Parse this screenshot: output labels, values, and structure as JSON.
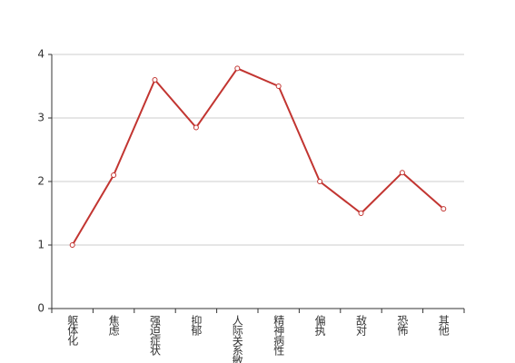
{
  "chart_data": {
    "type": "line",
    "categories": [
      "躯体化",
      "焦虑",
      "强迫症状",
      "抑郁",
      "人际关系敏感",
      "精神病性",
      "偏执",
      "敌对",
      "恐怖",
      "其他"
    ],
    "series": [
      {
        "color": "#c23531",
        "values": [
          1.0,
          2.1,
          3.6,
          2.85,
          3.78,
          3.5,
          2.0,
          1.5,
          2.14,
          1.57
        ]
      }
    ],
    "ylim": [
      0,
      4
    ],
    "yticks": [
      0,
      1,
      2,
      3,
      4
    ],
    "grid": true
  }
}
